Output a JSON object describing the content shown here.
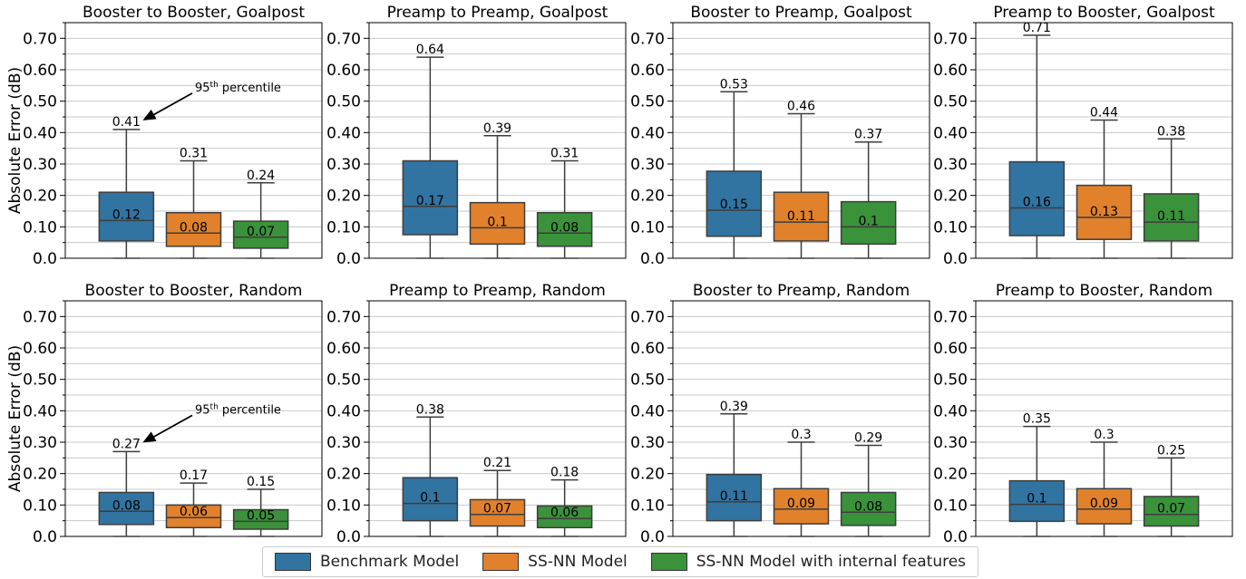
{
  "chart_data": {
    "type": "box",
    "ylabel": "Absolute Error (dB)",
    "ylim": [
      0,
      0.75
    ],
    "yticks": [
      0.0,
      0.1,
      0.2,
      0.3,
      0.4,
      0.5,
      0.6,
      0.7
    ],
    "ytick_labels": [
      "0.0",
      "0.10",
      "0.20",
      "0.30",
      "0.40",
      "0.50",
      "0.60",
      "0.70"
    ],
    "grid": true,
    "legend_position": "bottom-center",
    "series": [
      {
        "name": "Benchmark Model",
        "color": "#3274a1"
      },
      {
        "name": "SS-NN Model",
        "color": "#e1812c"
      },
      {
        "name": "SS-NN Model with internal features",
        "color": "#3a923a"
      }
    ],
    "panels": [
      {
        "title": "Booster to Booster, Goalpost",
        "annotation": {
          "prefix": "95",
          "sup": "th",
          "text": "percentile"
        },
        "boxes": [
          {
            "q1": 0.055,
            "median": 0.12,
            "q3": 0.21,
            "whisker_low": 0.0,
            "whisker_high": 0.41,
            "median_label": "0.12",
            "p95_label": "0.41"
          },
          {
            "q1": 0.038,
            "median": 0.08,
            "q3": 0.145,
            "whisker_low": 0.0,
            "whisker_high": 0.31,
            "median_label": "0.08",
            "p95_label": "0.31"
          },
          {
            "q1": 0.032,
            "median": 0.067,
            "q3": 0.118,
            "whisker_low": 0.0,
            "whisker_high": 0.24,
            "median_label": "0.07",
            "p95_label": "0.24"
          }
        ]
      },
      {
        "title": "Preamp to Preamp, Goalpost",
        "boxes": [
          {
            "q1": 0.075,
            "median": 0.165,
            "q3": 0.31,
            "whisker_low": 0.0,
            "whisker_high": 0.64,
            "median_label": "0.17",
            "p95_label": "0.64"
          },
          {
            "q1": 0.045,
            "median": 0.097,
            "q3": 0.177,
            "whisker_low": 0.0,
            "whisker_high": 0.39,
            "median_label": "0.1",
            "p95_label": "0.39"
          },
          {
            "q1": 0.038,
            "median": 0.08,
            "q3": 0.145,
            "whisker_low": 0.0,
            "whisker_high": 0.31,
            "median_label": "0.08",
            "p95_label": "0.31"
          }
        ]
      },
      {
        "title": "Booster to Preamp, Goalpost",
        "boxes": [
          {
            "q1": 0.07,
            "median": 0.153,
            "q3": 0.277,
            "whisker_low": 0.0,
            "whisker_high": 0.53,
            "median_label": "0.15",
            "p95_label": "0.53"
          },
          {
            "q1": 0.055,
            "median": 0.115,
            "q3": 0.21,
            "whisker_low": 0.0,
            "whisker_high": 0.46,
            "median_label": "0.11",
            "p95_label": "0.46"
          },
          {
            "q1": 0.045,
            "median": 0.1,
            "q3": 0.18,
            "whisker_low": 0.0,
            "whisker_high": 0.37,
            "median_label": "0.1",
            "p95_label": "0.37"
          }
        ]
      },
      {
        "title": "Preamp to Booster, Goalpost",
        "boxes": [
          {
            "q1": 0.072,
            "median": 0.16,
            "q3": 0.307,
            "whisker_low": 0.0,
            "whisker_high": 0.71,
            "median_label": "0.16",
            "p95_label": "0.71"
          },
          {
            "q1": 0.06,
            "median": 0.13,
            "q3": 0.232,
            "whisker_low": 0.0,
            "whisker_high": 0.44,
            "median_label": "0.13",
            "p95_label": "0.44"
          },
          {
            "q1": 0.055,
            "median": 0.115,
            "q3": 0.205,
            "whisker_low": 0.0,
            "whisker_high": 0.38,
            "median_label": "0.11",
            "p95_label": "0.38"
          }
        ]
      },
      {
        "title": "Booster to Booster, Random",
        "annotation": {
          "prefix": "95",
          "sup": "th",
          "text": "percentile"
        },
        "boxes": [
          {
            "q1": 0.038,
            "median": 0.08,
            "q3": 0.14,
            "whisker_low": 0.0,
            "whisker_high": 0.27,
            "median_label": "0.08",
            "p95_label": "0.27"
          },
          {
            "q1": 0.028,
            "median": 0.06,
            "q3": 0.1,
            "whisker_low": 0.0,
            "whisker_high": 0.17,
            "median_label": "0.06",
            "p95_label": "0.17"
          },
          {
            "q1": 0.023,
            "median": 0.048,
            "q3": 0.085,
            "whisker_low": 0.0,
            "whisker_high": 0.15,
            "median_label": "0.05",
            "p95_label": "0.15"
          }
        ]
      },
      {
        "title": "Preamp to Preamp, Random",
        "boxes": [
          {
            "q1": 0.05,
            "median": 0.105,
            "q3": 0.187,
            "whisker_low": 0.0,
            "whisker_high": 0.38,
            "median_label": "0.1",
            "p95_label": "0.38"
          },
          {
            "q1": 0.033,
            "median": 0.07,
            "q3": 0.117,
            "whisker_low": 0.0,
            "whisker_high": 0.21,
            "median_label": "0.07",
            "p95_label": "0.21"
          },
          {
            "q1": 0.028,
            "median": 0.057,
            "q3": 0.097,
            "whisker_low": 0.0,
            "whisker_high": 0.18,
            "median_label": "0.06",
            "p95_label": "0.18"
          }
        ]
      },
      {
        "title": "Booster to Preamp, Random",
        "boxes": [
          {
            "q1": 0.05,
            "median": 0.11,
            "q3": 0.197,
            "whisker_low": 0.0,
            "whisker_high": 0.39,
            "median_label": "0.11",
            "p95_label": "0.39"
          },
          {
            "q1": 0.04,
            "median": 0.087,
            "q3": 0.152,
            "whisker_low": 0.0,
            "whisker_high": 0.3,
            "median_label": "0.09",
            "p95_label": "0.3"
          },
          {
            "q1": 0.035,
            "median": 0.077,
            "q3": 0.14,
            "whisker_low": 0.0,
            "whisker_high": 0.29,
            "median_label": "0.08",
            "p95_label": "0.29"
          }
        ]
      },
      {
        "title": "Preamp to Booster, Random",
        "boxes": [
          {
            "q1": 0.048,
            "median": 0.102,
            "q3": 0.177,
            "whisker_low": 0.0,
            "whisker_high": 0.35,
            "median_label": "0.1",
            "p95_label": "0.35"
          },
          {
            "q1": 0.04,
            "median": 0.087,
            "q3": 0.152,
            "whisker_low": 0.0,
            "whisker_high": 0.3,
            "median_label": "0.09",
            "p95_label": "0.3"
          },
          {
            "q1": 0.033,
            "median": 0.07,
            "q3": 0.127,
            "whisker_low": 0.0,
            "whisker_high": 0.25,
            "median_label": "0.07",
            "p95_label": "0.25"
          }
        ]
      }
    ]
  }
}
